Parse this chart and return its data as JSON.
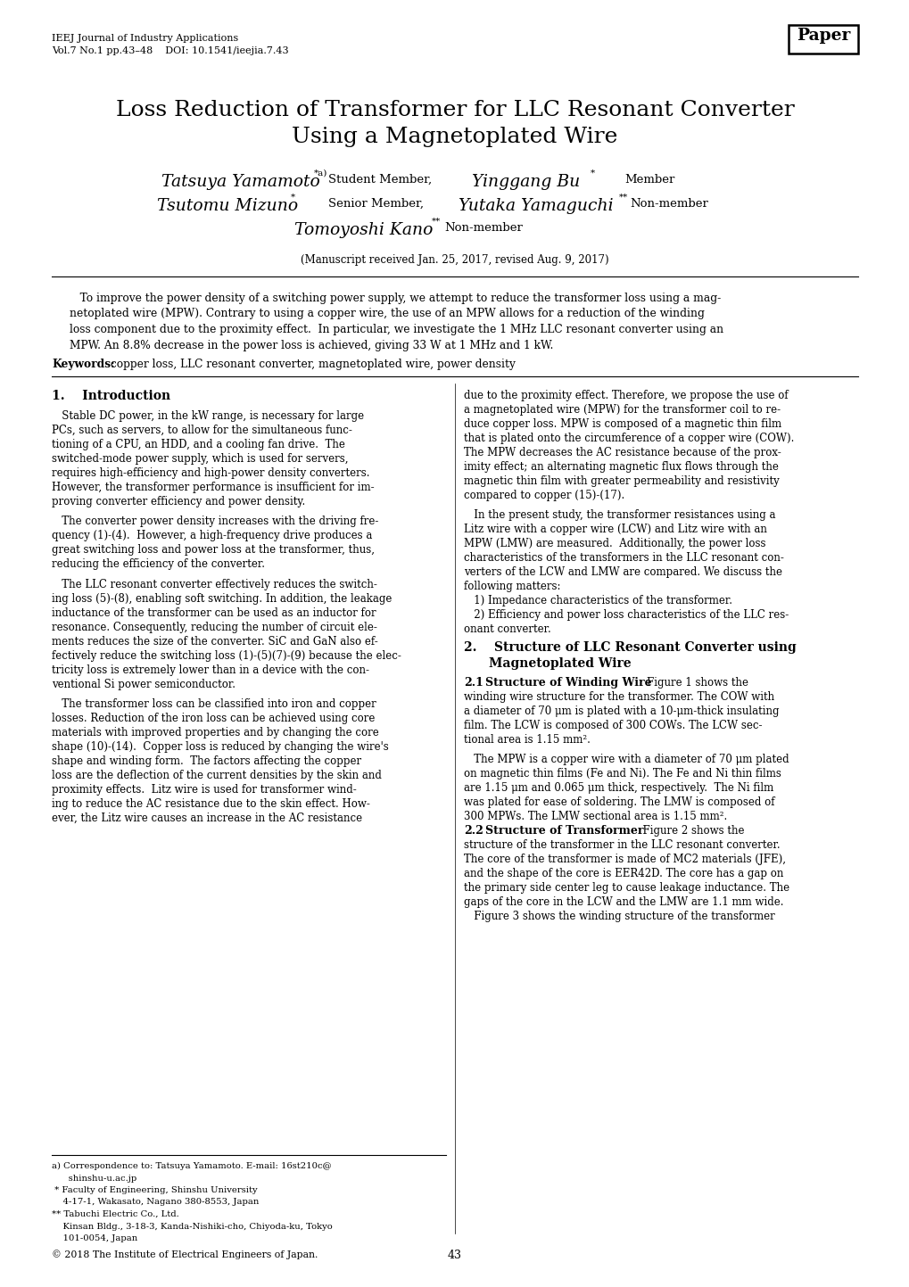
{
  "page_width": 10.2,
  "page_height": 14.43,
  "dpi": 100,
  "bg": "#ffffff",
  "journal1": "IEEJ Journal of Industry Applications",
  "journal2": "Vol.7 No.1 pp.43–48    DOI: 10.1541/ieejia.7.43",
  "paper_label": "Paper",
  "title1": "Loss Reduction of Transformer for LLC Resonant Converter",
  "title2": "Using a Magnetoplated Wire",
  "auth1_name": "Tatsuya Yamamoto",
  "auth1_sup": "*a)",
  "auth1_role": "Student Member,",
  "auth2_name": "Yinggang Bu",
  "auth2_sup": "*",
  "auth2_role": "Member",
  "auth3_name": "Tsutomu Mizuno",
  "auth3_sup": "*",
  "auth3_role": "Senior Member,",
  "auth4_name": "Yutaka Yamaguchi",
  "auth4_sup": "**",
  "auth4_role": "Non-member",
  "auth5_name": "Tomoyoshi Kano",
  "auth5_sup": "**",
  "auth5_role": "Non-member",
  "manuscript": "(Manuscript received Jan. 25, 2017, revised Aug. 9, 2017)",
  "abstract": "   To improve the power density of a switching power supply, we attempt to reduce the transformer loss using a mag-netoplated wire (MPW). Contrary to using a copper wire, the use of an MPW allows for a reduction of the winding loss component due to the proximity effect.  In particular, we investigate the 1 MHz LLC resonant converter using an MPW. An 8.8% decrease in the power loss is achieved, giving 33 W at 1 MHz and 1 kW.",
  "kw_bold": "Keywords:",
  "kw_text": " copper loss, LLC resonant converter, magnetoplated wire, power density",
  "s1_head": "1.    Introduction",
  "col1_p1": "   Stable DC power, in the kW range, is necessary for large PCs, such as servers, to allow for the simultaneous func-tioning of a CPU, an HDD, and a cooling fan drive.  The switched-mode power supply, which is used for servers, requires high-efficiency and high-power density converters. However, the transformer performance is insufficient for im-proving converter efficiency and power density.",
  "col1_p2": "   The converter power density increases with the driving fre-quency (1)-(4).  However, a high-frequency drive produces a great switching loss and power loss at the transformer, thus, reducing the efficiency of the converter.",
  "col1_p3": "   The LLC resonant converter effectively reduces the switch-ing loss (5)-(8), enabling soft switching. In addition, the leakage inductance of the transformer can be used as an inductor for resonance. Consequently, reducing the number of circuit ele-ments reduces the size of the converter. SiC and GaN also ef-fectively reduce the switching loss (1)-(5)(7)-(9) because the elec-tricity loss is extremely lower than in a device with the con-ventional Si power semiconductor.",
  "col1_p4": "   The transformer loss can be classified into iron and copper losses. Reduction of the iron loss can be achieved using core materials with improved properties and by changing the core shape (10)-(14).  Copper loss is reduced by changing the wire's shape and winding form. The factors affecting the copper loss are the deflection of the current densities by the skin and proximity effects.  Litz wire is used for transformer wind-ing to reduce the AC resistance due to the skin effect. How-ever, the Litz wire causes an increase in the AC resistance",
  "fn_line": "a) Correspondence to: Tatsuya Yamamoto. E-mail: 16st210c@\n      shinshu-u.ac.jp\n * Faculty of Engineering, Shinshu University\n    4-17-1, Wakasato, Nagano 380-8553, Japan\n** Tabuchi Electric Co., Ltd.\n    Kinsan Bldg., 3-18-3, Kanda-Nishiki-cho, Chiyoda-ku, Tokyo\n    101-0054, Japan",
  "col2_p1": "due to the proximity effect. Therefore, we propose the use of a magnetoplated wire (MPW) for the transformer coil to re-duce copper loss. MPW is composed of a magnetic thin film that is plated onto the circumference of a copper wire (COW). The MPW decreases the AC resistance because of the prox-imity effect; an alternating magnetic flux flows through the magnetic thin film with greater permeability and resistivity compared to copper (15)-(17).",
  "col2_p2": "   In the present study, the transformer resistances using a Litz wire with a copper wire (LCW) and Litz wire with an MPW (LMW) are measured.  Additionally, the power loss characteristics of the transformers in the LLC resonant con-verters of the LCW and LMW are compared. We discuss the following matters:",
  "col2_list1": "   1) Impedance characteristics of the transformer.",
  "col2_list2": "   2) Efficiency and power loss characteristics of the LLC res-\nonant converter.",
  "s2_head1": "2.    Structure of LLC Resonant Converter using",
  "s2_head2": "       Magnetoplated Wire",
  "s21_bold": "2.1   Structure of Winding Wire",
  "s21_rest": "    Figure 1 shows the winding wire structure for the transformer. The COW with a diameter of 70 μm is plated with a 10-μm-thick insulating film. The LCW is composed of 300 COWs. The LCW sec-tional area is 1.15 mm².",
  "s21_p2": "   The MPW is a copper wire with a diameter of 70 μm plated on magnetic thin films (Fe and Ni). The Fe and Ni thin films are 1.15 μm and 0.065 μm thick, respectively.  The Ni film was plated for ease of soldering. The LMW is composed of 300 MPWs. The LMW sectional area is 1.15 mm².",
  "s22_bold": "2.2   Structure of Transformer",
  "s22_rest": "    Figure 2 shows the structure of the transformer in the LLC resonant converter. The core of the transformer is made of MC2 materials (JFE), and the shape of the core is EER42D. The core has a gap on the primary side center leg to cause leakage inductance. The gaps of the core in the LCW and the LMW are 1.1 mm wide.",
  "s22_p2": "   Figure 3 shows the winding structure of the transformer",
  "copyright": "© 2018 The Institute of Electrical Engineers of Japan.",
  "pagenum": "43"
}
